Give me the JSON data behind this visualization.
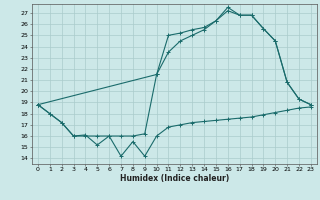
{
  "xlabel": "Humidex (Indice chaleur)",
  "bg_color": "#cce8e8",
  "grid_color": "#aacccc",
  "line_color": "#1a6b6b",
  "x_ticks": [
    0,
    1,
    2,
    3,
    4,
    5,
    6,
    7,
    8,
    9,
    10,
    11,
    12,
    13,
    14,
    15,
    16,
    17,
    18,
    19,
    20,
    21,
    22,
    23
  ],
  "y_ticks": [
    14,
    15,
    16,
    17,
    18,
    19,
    20,
    21,
    22,
    23,
    24,
    25,
    26,
    27
  ],
  "xlim": [
    -0.5,
    23.5
  ],
  "ylim": [
    13.5,
    27.8
  ],
  "line1_x": [
    0,
    1,
    2,
    3,
    4,
    5,
    6,
    7,
    8,
    9,
    10,
    11,
    12,
    13,
    14,
    15,
    16,
    17,
    18,
    19,
    20,
    21,
    22,
    23
  ],
  "line1_y": [
    18.8,
    18.0,
    17.2,
    16.0,
    16.1,
    15.2,
    16.0,
    14.2,
    15.5,
    14.2,
    16.0,
    16.8,
    17.0,
    17.2,
    17.3,
    17.4,
    17.5,
    17.6,
    17.7,
    17.9,
    18.1,
    18.3,
    18.5,
    18.6
  ],
  "line2_x": [
    0,
    1,
    2,
    3,
    4,
    5,
    6,
    7,
    8,
    9,
    10,
    11,
    12,
    13,
    14,
    15,
    16,
    17,
    18,
    19,
    20,
    21,
    22,
    23
  ],
  "line2_y": [
    18.8,
    18.0,
    17.2,
    16.0,
    16.0,
    16.0,
    16.0,
    16.0,
    16.0,
    16.2,
    21.5,
    25.0,
    25.2,
    25.5,
    25.7,
    26.3,
    27.2,
    26.8,
    26.8,
    25.6,
    24.5,
    20.8,
    19.3,
    18.8
  ],
  "line3_x": [
    0,
    10,
    11,
    12,
    13,
    14,
    15,
    16,
    17,
    18,
    19,
    20,
    21,
    22,
    23
  ],
  "line3_y": [
    18.8,
    21.5,
    23.5,
    24.5,
    25.0,
    25.5,
    26.3,
    27.5,
    26.8,
    26.8,
    25.6,
    24.5,
    20.8,
    19.3,
    18.8
  ]
}
